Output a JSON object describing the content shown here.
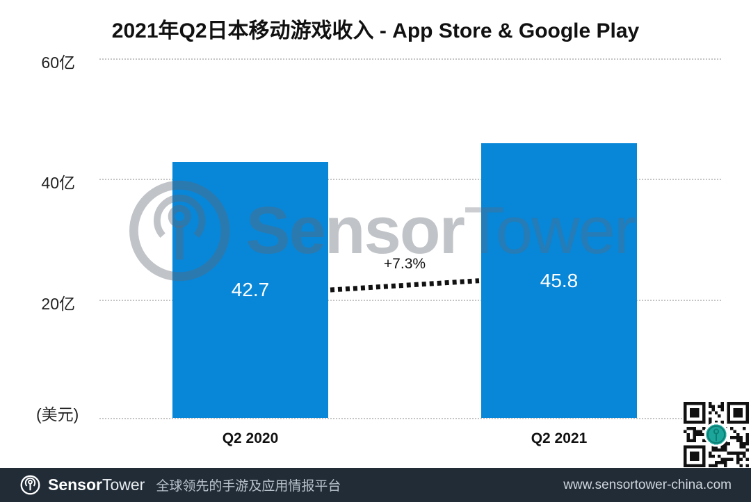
{
  "chart_data": {
    "type": "bar",
    "title": "2021年Q2日本移动游戏收入 - App Store & Google Play",
    "categories": [
      "Q2 2020",
      "Q2 2021"
    ],
    "values": [
      42.7,
      45.8
    ],
    "yticks": [
      "60亿",
      "40亿",
      "20亿"
    ],
    "unit_label": "(美元)",
    "ylim": [
      0,
      60
    ],
    "growth_annotation": "+7.3%",
    "bar_color": "#0886d8",
    "grid": "horizontal-dotted",
    "legend": "none"
  },
  "watermark": {
    "brand_bold": "Sensor",
    "brand_light": "Tower"
  },
  "qr_code": {
    "center_logo_color": "#1ca69b",
    "center_logo_ring": "#ffffff",
    "module_color": "#111111"
  },
  "footer": {
    "brand_bold": "Sensor",
    "brand_light": "Tower",
    "tagline": "全球领先的手游及应用情报平台",
    "url": "www.sensortower-china.com",
    "bg_color": "#212c37"
  }
}
